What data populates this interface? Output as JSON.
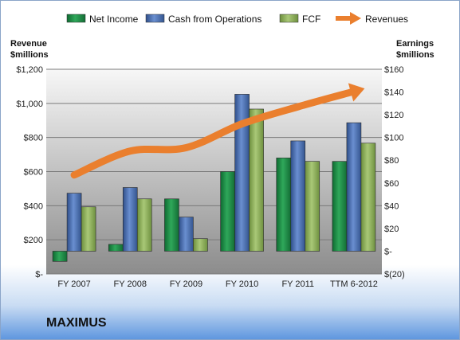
{
  "chart_data": {
    "type": "bar",
    "title": "",
    "company": "MAXIMUS",
    "categories": [
      "FY 2007",
      "FY 2008",
      "FY 2009",
      "FY 2010",
      "FY 2011",
      "TTM 6-2012"
    ],
    "left_axis": {
      "label_line1": "Revenue",
      "label_line2": "$millions",
      "ylim": [
        0,
        1200
      ],
      "ticks": [
        0,
        200,
        400,
        600,
        800,
        1000,
        1200
      ],
      "tick_labels": [
        "$-",
        "$200",
        "$400",
        "$600",
        "$800",
        "$1,000",
        "$1,200"
      ]
    },
    "right_axis": {
      "label_line1": "Earnings",
      "label_line2": "$millions",
      "ylim": [
        -20,
        160
      ],
      "ticks": [
        -20,
        0,
        20,
        40,
        60,
        80,
        100,
        120,
        140,
        160
      ],
      "tick_labels": [
        "$(20)",
        "$-",
        "$20",
        "$40",
        "$60",
        "$80",
        "$100",
        "$120",
        "$140",
        "$160"
      ]
    },
    "series": [
      {
        "name": "Net Income",
        "axis": "right",
        "color": "#1f8a45",
        "values": [
          -9,
          6,
          46,
          70,
          82,
          79
        ]
      },
      {
        "name": "Cash from Operations",
        "axis": "right",
        "color": "#4a6fb0",
        "values": [
          51,
          56,
          30,
          138,
          97,
          113
        ]
      },
      {
        "name": "FCF",
        "axis": "right",
        "color": "#8fb15c",
        "values": [
          39,
          46,
          11,
          125,
          79,
          95
        ]
      },
      {
        "name": "Revenues",
        "axis": "left",
        "type": "arrow-line",
        "color": "#ea7f2e",
        "values": [
          580,
          720,
          740,
          880,
          980,
          1070
        ]
      }
    ],
    "legend_placement": "top",
    "grid": true,
    "plot_background": "gray-gradient"
  }
}
